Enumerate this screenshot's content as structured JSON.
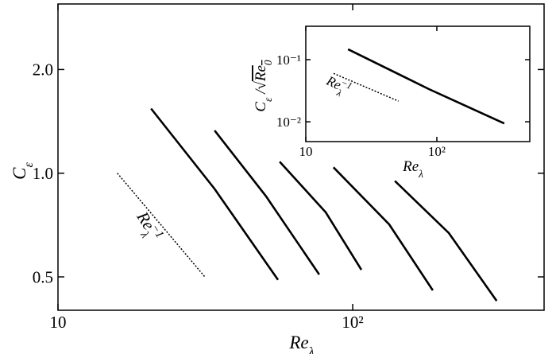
{
  "chart_data": [
    {
      "type": "line",
      "log_x": true,
      "log_y": true,
      "frame": true,
      "xlabel": [
        "Re",
        {
          "t": "λ",
          "sub": true
        }
      ],
      "ylabel": [
        "C",
        {
          "t": "ε",
          "sub": true
        }
      ],
      "xlim": [
        10,
        446
      ],
      "ylim": [
        0.4,
        3.1
      ],
      "xticks": [
        10,
        {
          "value": 100,
          "label": "10²"
        }
      ],
      "yticks": [
        0.5,
        {
          "value": 1,
          "label": "1.0"
        },
        {
          "value": 2,
          "label": "2.0"
        }
      ],
      "annotation": [
        "Re",
        {
          "t": "λ",
          "sub": true
        },
        {
          "t": "−1",
          "sup": true
        }
      ],
      "series": [
        {
          "color": "#000000",
          "style": "dotted",
          "x": [
            15.9,
            31.5
          ],
          "values": [
            1.0,
            0.5
          ]
        },
        {
          "color": "#000000",
          "style": "solid",
          "x": [
            20.7,
            34.0,
            55.8
          ],
          "values": [
            1.54,
            0.9,
            0.49
          ]
        },
        {
          "color": "#000000",
          "style": "solid",
          "x": [
            34.0,
            50.8,
            77
          ],
          "values": [
            1.33,
            0.857,
            0.508
          ]
        },
        {
          "color": "#000000",
          "style": "solid",
          "x": [
            56.5,
            81,
            107
          ],
          "values": [
            1.08,
            0.77,
            0.524
          ]
        },
        {
          "color": "#000000",
          "style": "solid",
          "x": [
            86,
            133,
            187
          ],
          "values": [
            1.04,
            0.71,
            0.457
          ]
        },
        {
          "color": "#000000",
          "style": "solid",
          "x": [
            139,
            212,
            308
          ],
          "values": [
            0.95,
            0.67,
            0.426
          ]
        }
      ]
    },
    {
      "type": "line",
      "log_x": true,
      "log_y": true,
      "frame": true,
      "xlabel": [
        "Re",
        {
          "t": "λ",
          "sub": true
        }
      ],
      "ylabel": [
        "C",
        {
          "t": "ε",
          "sub": true
        },
        " /√",
        {
          "t": "Re",
          "overline": true
        },
        {
          "t": "0",
          "sub": true,
          "overline": true
        }
      ],
      "xlim": [
        10,
        512
      ],
      "ylim": [
        0.0048,
        0.345
      ],
      "xticks": [
        10,
        {
          "value": 100,
          "label": "10²"
        }
      ],
      "yticks": [
        {
          "value": 0.01,
          "label": "10⁻²"
        },
        {
          "value": 0.1,
          "label": "10⁻¹"
        }
      ],
      "annotation": [
        "Re",
        {
          "t": "λ",
          "sub": true
        },
        {
          "t": "−1",
          "sup": true
        }
      ],
      "series": [
        {
          "color": "#000000",
          "style": "dotted",
          "x": [
            16.3,
            51
          ],
          "values": [
            0.06,
            0.0215
          ]
        },
        {
          "color": "#000000",
          "style": "solid",
          "x": [
            21,
            87,
            327
          ],
          "values": [
            0.147,
            0.0336,
            0.0094
          ]
        }
      ]
    }
  ]
}
